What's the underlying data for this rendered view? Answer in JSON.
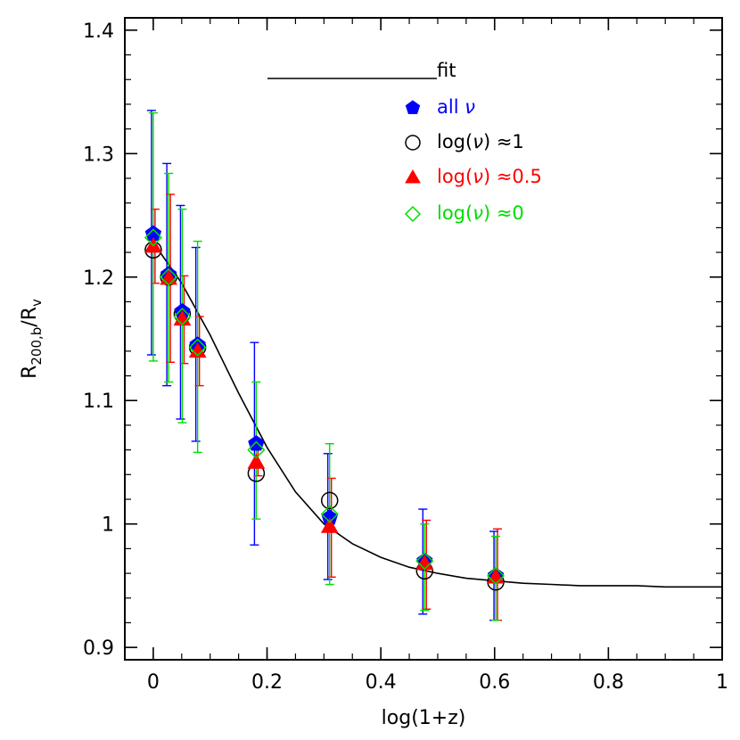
{
  "chart_data": {
    "type": "scatter",
    "xlabel": "log(1+z)",
    "ylabel_main": "R",
    "ylabel_sub": "200,b",
    "ylabel_slash": "/R",
    "ylabel_sub2": "v",
    "xlim": [
      -0.05,
      1.0
    ],
    "ylim": [
      0.89,
      1.41
    ],
    "x_ticks": [
      0,
      0.2,
      0.4,
      0.6,
      0.8,
      1
    ],
    "x_tick_labels": [
      "0",
      "0.2",
      "0.4",
      "0.6",
      "0.8",
      "1"
    ],
    "y_ticks": [
      0.9,
      1.0,
      1.1,
      1.2,
      1.3,
      1.4
    ],
    "y_tick_labels": [
      "0.9",
      "1",
      "1.1",
      "1.2",
      "1.3",
      "1.4"
    ],
    "x_minor_step": 0.05,
    "y_minor_step": 0.02,
    "grid": false,
    "legend_position": "top-right",
    "fit": {
      "name": "fit",
      "color": "#000000",
      "x": [
        0.0,
        0.05,
        0.1,
        0.15,
        0.2,
        0.25,
        0.3,
        0.35,
        0.4,
        0.45,
        0.5,
        0.55,
        0.6,
        0.65,
        0.7,
        0.75,
        0.8,
        0.85,
        0.9,
        0.95,
        1.0
      ],
      "y": [
        1.228,
        1.195,
        1.153,
        1.106,
        1.062,
        1.026,
        1.0,
        0.984,
        0.973,
        0.965,
        0.96,
        0.956,
        0.954,
        0.952,
        0.951,
        0.95,
        0.95,
        0.95,
        0.949,
        0.949,
        0.949
      ]
    },
    "series": [
      {
        "name": "all ν",
        "legend_parts": [
          "all ",
          "ν"
        ],
        "marker": "pentagon",
        "color": "#0000ff",
        "filled": true,
        "x": [
          0.0,
          0.027,
          0.051,
          0.078,
          0.181,
          0.31,
          0.477,
          0.602
        ],
        "y": [
          1.235,
          1.202,
          1.172,
          1.145,
          1.065,
          1.005,
          0.97,
          0.958
        ],
        "err_low": [
          1.137,
          1.112,
          1.085,
          1.067,
          0.983,
          0.955,
          0.927,
          0.922
        ],
        "err_high": [
          1.335,
          1.292,
          1.258,
          1.224,
          1.147,
          1.057,
          1.012,
          0.994
        ]
      },
      {
        "name": "log(ν) ≈1",
        "legend_parts": [
          "log(",
          "ν",
          ")  ≈1"
        ],
        "marker": "circle-open",
        "color": "#000000",
        "filled": false,
        "x": [
          0.0,
          0.027,
          0.051,
          0.078,
          0.181,
          0.31,
          0.477,
          0.602
        ],
        "y": [
          1.222,
          1.2,
          1.17,
          1.143,
          1.041,
          1.019,
          0.962,
          0.953
        ],
        "err_low": [],
        "err_high": []
      },
      {
        "name": "log(ν) ≈0.5",
        "legend_parts": [
          "log(",
          "ν",
          ")  ≈0.5"
        ],
        "marker": "triangle",
        "color": "#ff0000",
        "filled": true,
        "x": [
          0.0,
          0.027,
          0.051,
          0.078,
          0.181,
          0.31,
          0.477,
          0.602
        ],
        "y": [
          1.225,
          1.199,
          1.166,
          1.14,
          1.05,
          0.998,
          0.968,
          0.957
        ],
        "err_low": [
          1.195,
          1.131,
          1.13,
          1.112,
          1.039,
          0.957,
          0.931,
          0.922
        ],
        "err_high": [
          1.255,
          1.267,
          1.201,
          1.168,
          1.061,
          1.037,
          1.003,
          0.996
        ]
      },
      {
        "name": "log(ν) ≈0",
        "legend_parts": [
          "log(",
          "ν",
          ")  ≈0"
        ],
        "marker": "diamond-open",
        "color": "#00dd00",
        "filled": false,
        "x": [
          0.0,
          0.027,
          0.051,
          0.078,
          0.181,
          0.31,
          0.477,
          0.602
        ],
        "y": [
          1.232,
          1.2,
          1.168,
          1.143,
          1.06,
          1.008,
          0.97,
          0.958
        ],
        "err_low": [
          1.132,
          1.115,
          1.082,
          1.058,
          1.004,
          0.951,
          0.93,
          0.922
        ],
        "err_high": [
          1.333,
          1.284,
          1.255,
          1.229,
          1.115,
          1.065,
          1.0,
          0.99
        ]
      }
    ]
  }
}
